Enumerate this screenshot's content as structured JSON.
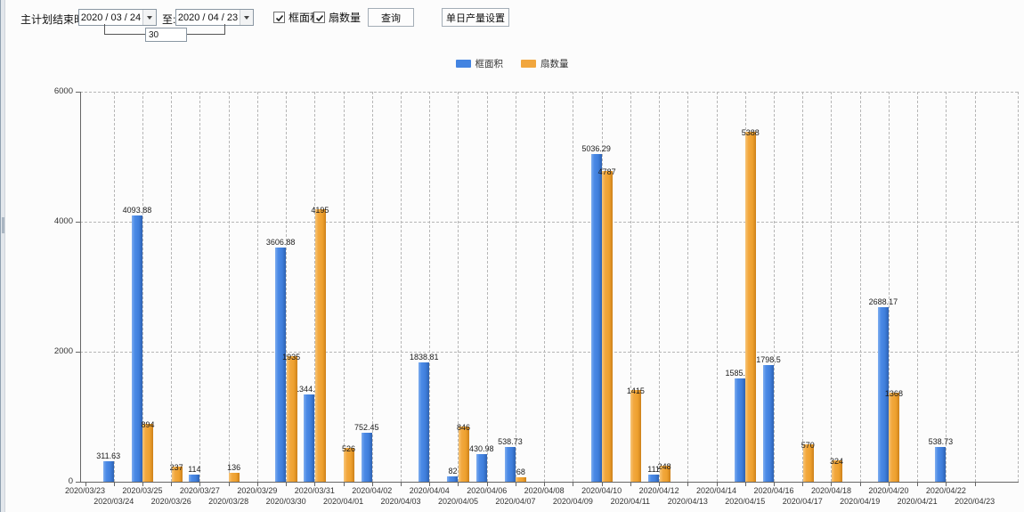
{
  "toolbar": {
    "main_label": "主计划结束时间:",
    "date_from": "2020 / 03 / 24",
    "to_label": "至:",
    "date_to": "2020 / 04 / 23",
    "days_between": "30",
    "checkbox_frame_area": "框面积",
    "checkbox_sash_count": "扇数量",
    "query_button": "查询",
    "daily_output_button": "单日产量设置"
  },
  "chart_data": {
    "type": "bar",
    "title": "",
    "xlabel": "",
    "ylabel": "",
    "ylim": [
      0,
      6000
    ],
    "yticks": [
      0,
      2000,
      4000,
      6000
    ],
    "grid": "dashed-vertical-and-horizontal",
    "legend_position": "top-center",
    "categories": [
      "2020/03/23",
      "2020/03/24",
      "2020/03/25",
      "2020/03/26",
      "2020/03/27",
      "2020/03/28",
      "2020/03/29",
      "2020/03/30",
      "2020/03/31",
      "2020/04/01",
      "2020/04/02",
      "2020/04/03",
      "2020/04/04",
      "2020/04/05",
      "2020/04/06",
      "2020/04/07",
      "2020/04/08",
      "2020/04/09",
      "2020/04/10",
      "2020/04/11",
      "2020/04/12",
      "2020/04/13",
      "2020/04/14",
      "2020/04/15",
      "2020/04/16",
      "2020/04/17",
      "2020/04/18",
      "2020/04/19",
      "2020/04/20",
      "2020/04/21",
      "2020/04/22",
      "2020/04/23"
    ],
    "series": [
      {
        "name": "框面积",
        "color": "#4384e1",
        "values": [
          null,
          311.63,
          4093.88,
          null,
          114,
          null,
          null,
          3606.88,
          1344.95,
          null,
          752.45,
          null,
          1838.81,
          82,
          430.98,
          538.73,
          null,
          null,
          5036.29,
          null,
          111,
          null,
          null,
          1585.96,
          1798.5,
          null,
          null,
          null,
          2688.17,
          null,
          538.73,
          null
        ]
      },
      {
        "name": "扇数量",
        "color": "#f1a63d",
        "values": [
          null,
          null,
          894,
          237,
          null,
          136,
          null,
          1935,
          4195,
          526,
          null,
          null,
          null,
          846,
          null,
          68,
          null,
          null,
          4787,
          1415,
          248,
          null,
          null,
          5388,
          null,
          570,
          324,
          null,
          1368,
          null,
          null,
          null
        ]
      }
    ]
  }
}
